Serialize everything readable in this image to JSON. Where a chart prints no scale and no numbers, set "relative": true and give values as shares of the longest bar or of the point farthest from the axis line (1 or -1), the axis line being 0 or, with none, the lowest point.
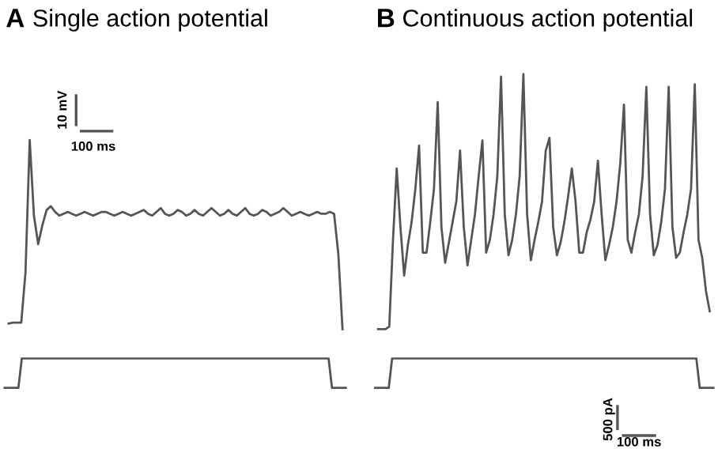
{
  "chart_data": [
    {
      "type": "line",
      "title": "Single action potential",
      "annotations": [
        "A",
        "10 mV",
        "100 ms"
      ],
      "relative": true,
      "categories": [
        null,
        null,
        null,
        null,
        null,
        null,
        null,
        null,
        null,
        null,
        null,
        null,
        null,
        null,
        null,
        null,
        null,
        null,
        null,
        null,
        null,
        null,
        null,
        null,
        null,
        null,
        null,
        null,
        null,
        null,
        null,
        null,
        null,
        null,
        null,
        null,
        null,
        null,
        null,
        null,
        null,
        null,
        null,
        null,
        null,
        null,
        null,
        null,
        null,
        null,
        null,
        null,
        null,
        null,
        null,
        null,
        null,
        null,
        null,
        null,
        null,
        null,
        null,
        null,
        null,
        null,
        null,
        null,
        null,
        null,
        null,
        null,
        null,
        null,
        null,
        null,
        null,
        null,
        null,
        null
      ],
      "series": [
        {
          "color": "#555555",
          "values": [
            0.03,
            0.035,
            0.035,
            0.035,
            0.3,
            1.0,
            0.6,
            0.45,
            0.55,
            0.63,
            0.65,
            0.62,
            0.6,
            0.61,
            0.62,
            0.61,
            0.6,
            0.61,
            0.62,
            0.61,
            0.6,
            0.61,
            0.62,
            0.62,
            0.61,
            0.6,
            0.61,
            0.62,
            0.61,
            0.6,
            0.61,
            0.62,
            0.63,
            0.61,
            0.6,
            0.62,
            0.64,
            0.61,
            0.6,
            0.61,
            0.63,
            0.62,
            0.6,
            0.61,
            0.63,
            0.61,
            0.6,
            0.62,
            0.64,
            0.62,
            0.6,
            0.61,
            0.63,
            0.61,
            0.6,
            0.62,
            0.64,
            0.61,
            0.6,
            0.61,
            0.63,
            0.62,
            0.6,
            0.61,
            0.62,
            0.64,
            0.62,
            0.6,
            0.61,
            0.62,
            0.61,
            0.6,
            0.61,
            0.62,
            0.61,
            0.61,
            0.62,
            0.61,
            0.4,
            0.0
          ]
        }
      ]
    },
    {
      "type": "line",
      "relative": true,
      "categories": [
        null,
        null,
        null,
        null,
        null,
        null,
        null,
        null,
        null,
        null,
        null,
        null,
        null,
        null,
        null,
        null,
        null,
        null,
        null,
        null,
        null,
        null,
        null,
        null,
        null,
        null,
        null,
        null,
        null,
        null,
        null,
        null,
        null,
        null,
        null,
        null,
        null,
        null,
        null,
        null,
        null,
        null,
        null,
        null,
        null,
        null,
        null,
        null,
        null,
        null,
        null,
        null,
        null,
        null,
        null,
        null,
        null,
        null,
        null,
        null,
        null,
        null,
        null,
        null,
        null,
        null,
        null,
        null,
        null,
        null,
        null,
        null,
        null,
        null,
        null,
        null,
        null,
        null,
        null,
        null,
        null,
        null,
        null,
        null,
        null,
        null,
        null,
        null,
        null,
        null,
        null,
        null,
        null,
        null,
        null,
        null,
        null,
        null,
        null,
        null
      ],
      "series": [
        {
          "color": "#555555",
          "values": [
            0,
            0,
            0,
            0,
            0,
            1,
            1,
            1,
            1,
            1,
            1,
            1,
            1,
            1,
            1,
            1,
            1,
            1,
            1,
            1,
            1,
            1,
            1,
            1,
            1,
            1,
            1,
            1,
            1,
            1,
            1,
            1,
            1,
            1,
            1,
            1,
            1,
            1,
            1,
            1,
            1,
            1,
            1,
            1,
            1,
            1,
            1,
            1,
            1,
            1,
            1,
            1,
            1,
            1,
            1,
            1,
            1,
            1,
            1,
            1,
            1,
            1,
            1,
            1,
            1,
            1,
            1,
            1,
            1,
            1,
            1,
            1,
            1,
            1,
            1,
            1,
            1,
            1,
            1,
            1,
            1,
            1,
            1,
            1,
            1,
            1,
            1,
            1,
            1,
            1,
            1,
            1,
            1,
            1,
            1,
            0,
            0,
            0,
            0,
            0
          ]
        }
      ]
    },
    {
      "type": "line",
      "title": "Continuous action potential",
      "annotations": [
        "B"
      ],
      "relative": true,
      "categories": [
        null,
        null,
        null,
        null,
        null,
        null,
        null,
        null,
        null,
        null,
        null,
        null,
        null,
        null,
        null,
        null,
        null,
        null,
        null,
        null,
        null,
        null,
        null,
        null,
        null,
        null,
        null,
        null,
        null,
        null,
        null,
        null,
        null,
        null,
        null,
        null,
        null,
        null,
        null,
        null,
        null,
        null,
        null,
        null,
        null,
        null,
        null,
        null,
        null,
        null,
        null,
        null,
        null,
        null,
        null,
        null,
        null,
        null,
        null,
        null,
        null,
        null,
        null,
        null,
        null,
        null,
        null,
        null,
        null,
        null,
        null,
        null,
        null,
        null,
        null,
        null,
        null,
        null,
        null,
        null,
        null,
        null,
        null,
        null,
        null,
        null,
        null,
        null,
        null,
        null
      ],
      "series": [
        {
          "color": "#555555",
          "values": [
            0,
            0,
            0,
            0.01,
            0.35,
            0.63,
            0.4,
            0.21,
            0.33,
            0.42,
            0.55,
            0.72,
            0.3,
            0.3,
            0.42,
            0.55,
            0.89,
            0.4,
            0.26,
            0.34,
            0.42,
            0.5,
            0.7,
            0.4,
            0.25,
            0.35,
            0.45,
            0.6,
            0.74,
            0.3,
            0.35,
            0.45,
            0.6,
            0.99,
            0.45,
            0.29,
            0.35,
            0.45,
            0.6,
            1.0,
            0.45,
            0.27,
            0.35,
            0.42,
            0.5,
            0.7,
            0.75,
            0.4,
            0.29,
            0.34,
            0.42,
            0.52,
            0.63,
            0.5,
            0.3,
            0.3,
            0.38,
            0.43,
            0.5,
            0.66,
            0.45,
            0.27,
            0.33,
            0.4,
            0.5,
            0.65,
            0.88,
            0.35,
            0.3,
            0.38,
            0.45,
            0.6,
            0.95,
            0.45,
            0.29,
            0.33,
            0.42,
            0.55,
            0.95,
            0.4,
            0.28,
            0.3,
            0.38,
            0.45,
            0.55,
            0.96,
            0.35,
            0.28,
            0.15,
            0.07
          ]
        }
      ]
    },
    {
      "type": "line",
      "annotations": [
        "500 pA",
        "100 ms"
      ],
      "relative": true,
      "categories": [
        null,
        null,
        null,
        null,
        null,
        null,
        null,
        null,
        null,
        null,
        null,
        null,
        null,
        null,
        null,
        null,
        null,
        null,
        null,
        null,
        null,
        null,
        null,
        null,
        null,
        null,
        null,
        null,
        null,
        null,
        null,
        null,
        null,
        null,
        null,
        null,
        null,
        null,
        null,
        null,
        null,
        null,
        null,
        null,
        null,
        null,
        null,
        null,
        null,
        null,
        null,
        null,
        null,
        null,
        null,
        null,
        null,
        null,
        null,
        null,
        null,
        null,
        null,
        null,
        null,
        null,
        null,
        null,
        null,
        null,
        null,
        null,
        null,
        null,
        null,
        null,
        null,
        null,
        null,
        null,
        null,
        null,
        null,
        null,
        null,
        null,
        null,
        null,
        null,
        null,
        null,
        null,
        null,
        null,
        null,
        null,
        null,
        null,
        null,
        null
      ],
      "series": [
        {
          "color": "#555555",
          "values": [
            0,
            0,
            0,
            0,
            0,
            1,
            1,
            1,
            1,
            1,
            1,
            1,
            1,
            1,
            1,
            1,
            1,
            1,
            1,
            1,
            1,
            1,
            1,
            1,
            1,
            1,
            1,
            1,
            1,
            1,
            1,
            1,
            1,
            1,
            1,
            1,
            1,
            1,
            1,
            1,
            1,
            1,
            1,
            1,
            1,
            1,
            1,
            1,
            1,
            1,
            1,
            1,
            1,
            1,
            1,
            1,
            1,
            1,
            1,
            1,
            1,
            1,
            1,
            1,
            1,
            1,
            1,
            1,
            1,
            1,
            1,
            1,
            1,
            1,
            1,
            1,
            1,
            1,
            1,
            1,
            1,
            1,
            1,
            1,
            1,
            1,
            1,
            1,
            1,
            1,
            1,
            1,
            1,
            1,
            1,
            0,
            0,
            0,
            0,
            0
          ]
        }
      ]
    }
  ]
}
